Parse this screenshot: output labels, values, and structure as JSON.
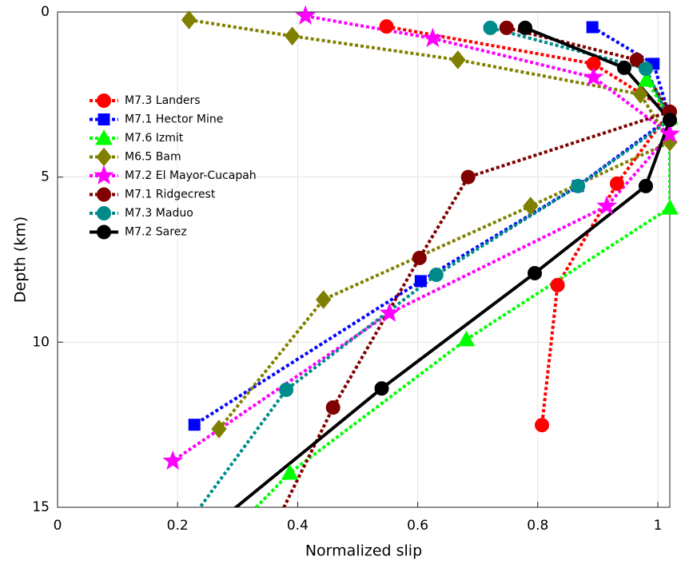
{
  "chart_data": {
    "type": "line",
    "xlabel": "Normalized slip",
    "ylabel": "Depth (km)",
    "xlim": [
      0,
      1.02
    ],
    "ylim": [
      0,
      15
    ],
    "y_inverted": true,
    "xticks": [
      0,
      0.2,
      0.4,
      0.6,
      0.8,
      1
    ],
    "yticks": [
      0,
      5,
      10,
      15
    ],
    "grid": true,
    "legend": "upper left",
    "series": [
      {
        "name": "M7.3 Landers",
        "color": "#ff0000",
        "marker": "circle",
        "linestyle": "dotted",
        "x": [
          0.548,
          0.893,
          1.02,
          0.932,
          0.833,
          0.807
        ],
        "y": [
          0.44,
          1.57,
          3.02,
          5.2,
          8.27,
          12.51
        ]
      },
      {
        "name": "M7.1 Hector Mine",
        "color": "#0000ff",
        "marker": "square",
        "linestyle": "dotted",
        "x": [
          0.891,
          0.993,
          1.02,
          0.867,
          0.605,
          0.228
        ],
        "y": [
          0.46,
          1.57,
          3.2,
          5.27,
          8.15,
          12.5
        ]
      },
      {
        "name": "M7.6 Izmit",
        "color": "#00ff00",
        "marker": "triangle",
        "linestyle": "dotted",
        "x": [
          0.981,
          1.02,
          1.02,
          0.681,
          0.387,
          0.277
        ],
        "y": [
          2.06,
          3.2,
          5.93,
          9.92,
          13.96,
          16
        ]
      },
      {
        "name": "M6.5 Bam",
        "color": "#808000",
        "marker": "diamond",
        "linestyle": "dotted",
        "x": [
          0.219,
          0.391,
          0.667,
          0.971,
          1.02,
          0.788,
          0.443,
          0.269
        ],
        "y": [
          0.24,
          0.73,
          1.45,
          2.49,
          3.94,
          5.88,
          8.71,
          12.63
        ]
      },
      {
        "name": "M7.2 El Mayor-Cucapah",
        "color": "#ff00ff",
        "marker": "star",
        "linestyle": "dotted",
        "x": [
          0.413,
          0.625,
          0.893,
          1.02,
          0.915,
          0.553,
          0.192
        ],
        "y": [
          0.12,
          0.8,
          1.98,
          3.7,
          5.88,
          9.12,
          13.6
        ]
      },
      {
        "name": "M7.1 Ridgecrest",
        "color": "#800000",
        "marker": "circle",
        "linestyle": "dotted",
        "x": [
          0.748,
          0.965,
          1.02,
          0.684,
          0.603,
          0.459,
          0.35
        ],
        "y": [
          0.48,
          1.45,
          3.02,
          5.0,
          7.45,
          11.98,
          16
        ]
      },
      {
        "name": "M7.3 Maduo",
        "color": "#008b8b",
        "marker": "circle",
        "linestyle": "dotted",
        "x": [
          0.721,
          0.98,
          1.02,
          0.867,
          0.631,
          0.381,
          0.197
        ],
        "y": [
          0.48,
          1.72,
          3.27,
          5.27,
          7.96,
          11.44,
          16
        ]
      },
      {
        "name": "M7.2 Sarez",
        "color": "#000000",
        "marker": "circle",
        "linestyle": "solid",
        "x": [
          0.779,
          0.944,
          1.02,
          0.98,
          0.795,
          0.54,
          0.23
        ],
        "y": [
          0.48,
          1.69,
          3.27,
          5.27,
          7.91,
          11.4,
          16
        ]
      }
    ]
  }
}
